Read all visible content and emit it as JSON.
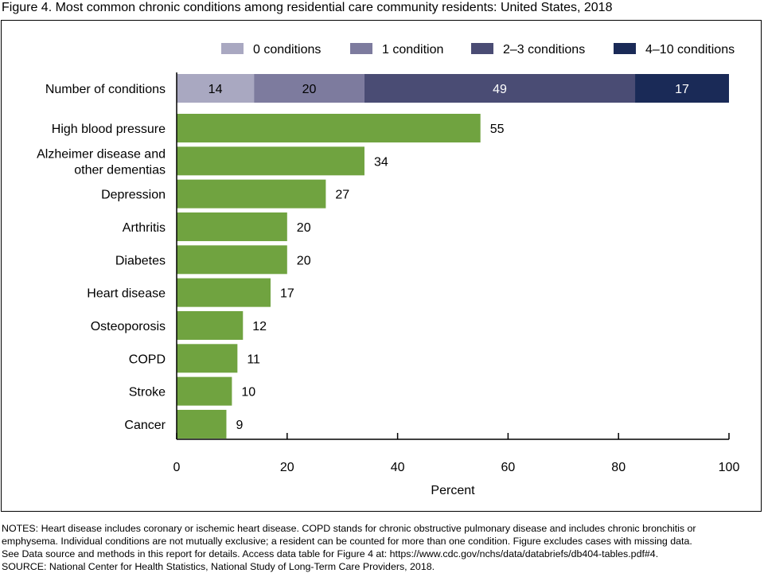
{
  "figure": {
    "title": "Figure 4. Most common chronic conditions among residential care community residents: United States, 2018"
  },
  "notes": {
    "line1": "NOTES: Heart disease includes coronary or ischemic heart disease. COPD stands for chronic obstructive pulmonary disease and includes chronic bronchitis or",
    "line2": "emphysema. Individual conditions are not mutually exclusive; a resident can be counted for more than one condition. Figure excludes cases with missing data.",
    "line3": "See Data source and methods in this report for details. Access data table for Figure 4 at: https://www.cdc.gov/nchs/data/databriefs/db404-tables.pdf#4.",
    "line4": "SOURCE: National Center for Health Statistics, National Study of Long-Term Care Providers, 2018."
  },
  "chart_data": {
    "type": "bar",
    "orientation": "horizontal",
    "xlabel": "Percent",
    "xlim": [
      0,
      100
    ],
    "xticks": [
      0,
      20,
      40,
      60,
      80,
      100
    ],
    "grid": false,
    "legend_position": "top",
    "stacked_row": {
      "label": "Number of conditions",
      "segments": [
        {
          "name": "0 conditions",
          "value": 14,
          "color": "#a9a8c1"
        },
        {
          "name": "1 condition",
          "value": 20,
          "color": "#7d7b9e"
        },
        {
          "name": "2–3 conditions",
          "value": 49,
          "color": "#4a4c74"
        },
        {
          "name": "4–10 conditions",
          "value": 17,
          "color": "#1a2a57"
        }
      ]
    },
    "bar_color": "#70a340",
    "categories": [
      [
        "High blood pressure"
      ],
      [
        "Alzheimer disease and",
        "other dementias"
      ],
      [
        "Depression"
      ],
      [
        "Arthritis"
      ],
      [
        "Diabetes"
      ],
      [
        "Heart disease"
      ],
      [
        "Osteoporosis"
      ],
      [
        "COPD"
      ],
      [
        "Stroke"
      ],
      [
        "Cancer"
      ]
    ],
    "values": [
      55,
      34,
      27,
      20,
      20,
      17,
      12,
      11,
      10,
      9
    ]
  }
}
